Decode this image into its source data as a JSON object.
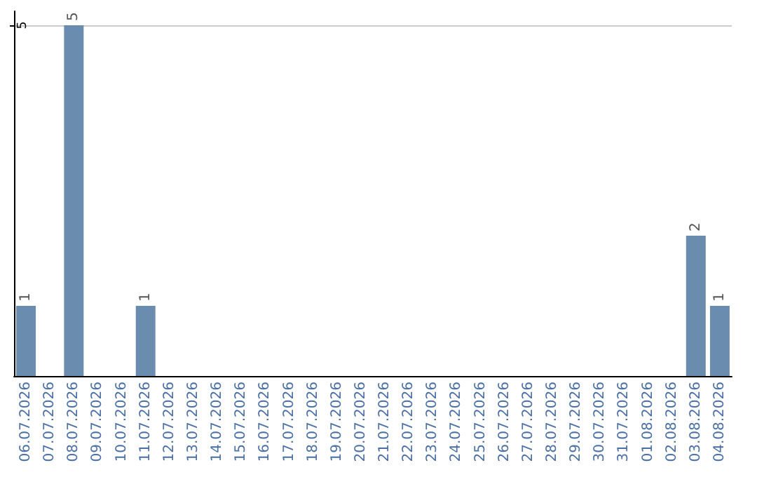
{
  "chart_data": {
    "type": "bar",
    "categories": [
      "06.07.2026",
      "07.07.2026",
      "08.07.2026",
      "09.07.2026",
      "10.07.2026",
      "11.07.2026",
      "12.07.2026",
      "13.07.2026",
      "14.07.2026",
      "15.07.2026",
      "16.07.2026",
      "17.07.2026",
      "18.07.2026",
      "19.07.2026",
      "20.07.2026",
      "21.07.2026",
      "22.07.2026",
      "23.07.2026",
      "24.07.2026",
      "25.07.2026",
      "26.07.2026",
      "27.07.2026",
      "28.07.2026",
      "29.07.2026",
      "30.07.2026",
      "31.07.2026",
      "01.08.2026",
      "02.08.2026",
      "03.08.2026",
      "04.08.2026"
    ],
    "values": [
      1,
      0,
      5,
      0,
      0,
      1,
      0,
      0,
      0,
      0,
      0,
      0,
      0,
      0,
      0,
      0,
      0,
      0,
      0,
      0,
      0,
      0,
      0,
      0,
      0,
      0,
      0,
      0,
      2,
      1
    ],
    "value_labels": [
      "1",
      null,
      "5",
      null,
      null,
      "1",
      null,
      null,
      null,
      null,
      null,
      null,
      null,
      null,
      null,
      null,
      null,
      null,
      null,
      null,
      null,
      null,
      null,
      null,
      null,
      null,
      null,
      null,
      "2",
      "1"
    ],
    "color": "#6a8caf",
    "ylim": [
      0,
      5.2
    ],
    "yticks": [
      5
    ],
    "grid": "y"
  }
}
